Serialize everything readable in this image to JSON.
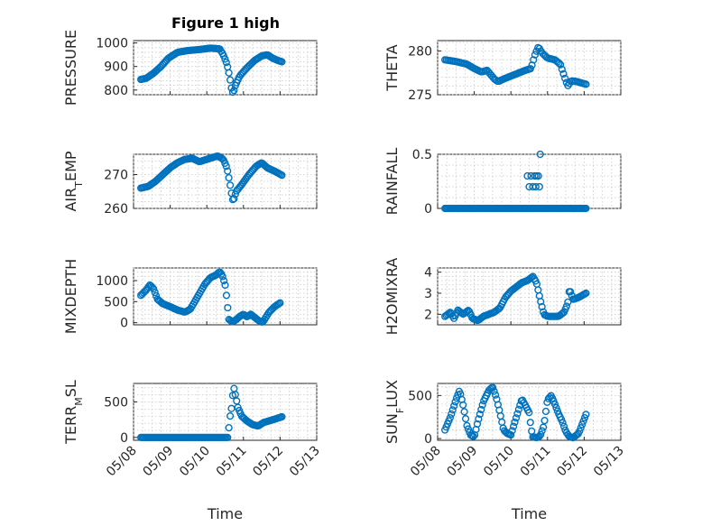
{
  "figure": {
    "title": "Figure 1 high",
    "marker_color": "#0072BD"
  },
  "chart_data": [
    {
      "type": "scatter",
      "name": "pressure",
      "ylabel_parts": [
        "PRESSURE"
      ],
      "ylim": [
        780,
        1010
      ],
      "yticks": [
        800,
        900,
        1000
      ],
      "ytick_labels": [
        "800",
        "900",
        "1000"
      ],
      "xlim": [
        "05/08",
        "05/13"
      ],
      "xticks": [
        "05/08",
        "05/09",
        "05/10",
        "05/11",
        "05/12",
        "05/13"
      ],
      "grid": true,
      "keys": [
        [
          0.2,
          845
        ],
        [
          0.35,
          850
        ],
        [
          0.55,
          872
        ],
        [
          0.75,
          900
        ],
        [
          0.95,
          935
        ],
        [
          1.2,
          960
        ],
        [
          1.5,
          968
        ],
        [
          1.8,
          972
        ],
        [
          2.1,
          978
        ],
        [
          2.35,
          975
        ],
        [
          2.45,
          950
        ],
        [
          2.55,
          910
        ],
        [
          2.62,
          860
        ],
        [
          2.67,
          810
        ],
        [
          2.72,
          785
        ],
        [
          2.78,
          820
        ],
        [
          2.9,
          860
        ],
        [
          3.1,
          895
        ],
        [
          3.3,
          925
        ],
        [
          3.5,
          945
        ],
        [
          3.65,
          950
        ],
        [
          3.8,
          935
        ],
        [
          3.95,
          925
        ],
        [
          4.05,
          920
        ]
      ],
      "n_points": 110
    },
    {
      "type": "scatter",
      "name": "theta",
      "ylabel_parts": [
        "THETA"
      ],
      "ylim": [
        275,
        281.2
      ],
      "yticks": [
        275,
        280
      ],
      "ytick_labels": [
        "275",
        "280"
      ],
      "xlim": [
        "05/08",
        "05/13"
      ],
      "xticks": [
        "05/08",
        "05/09",
        "05/10",
        "05/11",
        "05/12",
        "05/13"
      ],
      "grid": true,
      "keys": [
        [
          0.2,
          279.0
        ],
        [
          0.5,
          278.8
        ],
        [
          0.8,
          278.5
        ],
        [
          1.0,
          278.0
        ],
        [
          1.2,
          277.6
        ],
        [
          1.35,
          277.8
        ],
        [
          1.55,
          276.8
        ],
        [
          1.65,
          276.5
        ],
        [
          1.8,
          276.8
        ],
        [
          2.1,
          277.3
        ],
        [
          2.4,
          277.8
        ],
        [
          2.55,
          278.0
        ],
        [
          2.65,
          279.5
        ],
        [
          2.75,
          280.5
        ],
        [
          2.85,
          279.8
        ],
        [
          3.0,
          279.2
        ],
        [
          3.2,
          279.0
        ],
        [
          3.35,
          278.5
        ],
        [
          3.45,
          277.2
        ],
        [
          3.55,
          276.0
        ],
        [
          3.65,
          276.6
        ],
        [
          3.8,
          276.5
        ],
        [
          4.05,
          276.2
        ]
      ],
      "n_points": 95
    },
    {
      "type": "scatter",
      "name": "air_temp",
      "ylabel_parts": [
        "AIR",
        "T",
        "EMP"
      ],
      "ylim": [
        260,
        276
      ],
      "yticks": [
        260,
        270
      ],
      "ytick_labels": [
        "260",
        "270"
      ],
      "xlim": [
        "05/08",
        "05/13"
      ],
      "xticks": [
        "05/08",
        "05/09",
        "05/10",
        "05/11",
        "05/12",
        "05/13"
      ],
      "grid": true,
      "keys": [
        [
          0.2,
          266
        ],
        [
          0.4,
          266.5
        ],
        [
          0.6,
          268
        ],
        [
          0.8,
          270
        ],
        [
          1.0,
          272
        ],
        [
          1.2,
          273.5
        ],
        [
          1.4,
          274.5
        ],
        [
          1.6,
          274.8
        ],
        [
          1.8,
          273.8
        ],
        [
          2.0,
          274.5
        ],
        [
          2.3,
          275.5
        ],
        [
          2.45,
          274.5
        ],
        [
          2.55,
          272
        ],
        [
          2.62,
          268
        ],
        [
          2.68,
          264
        ],
        [
          2.72,
          262
        ],
        [
          2.8,
          265
        ],
        [
          2.95,
          267
        ],
        [
          3.15,
          270
        ],
        [
          3.35,
          272.5
        ],
        [
          3.5,
          273.5
        ],
        [
          3.65,
          272
        ],
        [
          3.85,
          271
        ],
        [
          4.05,
          269.8
        ]
      ],
      "n_points": 110
    },
    {
      "type": "scatter",
      "name": "rainfall",
      "ylabel_parts": [
        "RAINFALL"
      ],
      "ylim": [
        0,
        0.5
      ],
      "yticks": [
        0,
        0.5
      ],
      "ytick_labels": [
        "0",
        "0.5"
      ],
      "xlim": [
        "05/08",
        "05/13"
      ],
      "xticks": [
        "05/08",
        "05/09",
        "05/10",
        "05/11",
        "05/12",
        "05/13"
      ],
      "grid": true,
      "keys": [
        [
          0.2,
          0
        ],
        [
          4.05,
          0
        ]
      ],
      "n_points": 110,
      "extra_points": [
        [
          2.45,
          0.3
        ],
        [
          2.5,
          0.2
        ],
        [
          2.55,
          0.3
        ],
        [
          2.6,
          0.2
        ],
        [
          2.65,
          0.3
        ],
        [
          2.7,
          0.3
        ],
        [
          2.75,
          0.3
        ],
        [
          2.8,
          0.5
        ],
        [
          2.68,
          0.2
        ],
        [
          2.78,
          0.2
        ],
        [
          2.6,
          0
        ]
      ]
    },
    {
      "type": "scatter",
      "name": "mixdepth",
      "ylabel_parts": [
        "MIXDEPTH"
      ],
      "ylim": [
        -50,
        1300
      ],
      "yticks": [
        0,
        500,
        1000
      ],
      "ytick_labels": [
        "0",
        "500",
        "1000"
      ],
      "xlim": [
        "05/08",
        "05/13"
      ],
      "xticks": [
        "05/08",
        "05/09",
        "05/10",
        "05/11",
        "05/12",
        "05/13"
      ],
      "grid": true,
      "keys": [
        [
          0.2,
          650
        ],
        [
          0.35,
          780
        ],
        [
          0.45,
          900
        ],
        [
          0.55,
          800
        ],
        [
          0.65,
          560
        ],
        [
          0.8,
          450
        ],
        [
          1.0,
          380
        ],
        [
          1.2,
          300
        ],
        [
          1.4,
          250
        ],
        [
          1.55,
          320
        ],
        [
          1.75,
          620
        ],
        [
          1.95,
          920
        ],
        [
          2.1,
          1070
        ],
        [
          2.25,
          1130
        ],
        [
          2.35,
          1210
        ],
        [
          2.42,
          1130
        ],
        [
          2.5,
          900
        ],
        [
          2.55,
          550
        ],
        [
          2.6,
          80
        ],
        [
          2.7,
          20
        ],
        [
          2.8,
          70
        ],
        [
          2.9,
          150
        ],
        [
          3.0,
          200
        ],
        [
          3.1,
          140
        ],
        [
          3.2,
          200
        ],
        [
          3.3,
          130
        ],
        [
          3.4,
          60
        ],
        [
          3.5,
          10
        ],
        [
          3.55,
          40
        ],
        [
          3.7,
          250
        ],
        [
          3.85,
          380
        ],
        [
          4.0,
          470
        ]
      ],
      "n_points": 110
    },
    {
      "type": "scatter",
      "name": "h2omixra",
      "ylabel_parts": [
        "H2OMIXRA"
      ],
      "ylim": [
        1.5,
        4.2
      ],
      "yticks": [
        2,
        3,
        4
      ],
      "ytick_labels": [
        "2",
        "3",
        "4"
      ],
      "xlim": [
        "05/08",
        "05/13"
      ],
      "xticks": [
        "05/08",
        "05/09",
        "05/10",
        "05/11",
        "05/12",
        "05/13"
      ],
      "grid": true,
      "keys": [
        [
          0.2,
          1.9
        ],
        [
          0.35,
          2.1
        ],
        [
          0.45,
          1.8
        ],
        [
          0.55,
          2.2
        ],
        [
          0.7,
          2.0
        ],
        [
          0.85,
          2.2
        ],
        [
          0.95,
          1.8
        ],
        [
          1.1,
          1.7
        ],
        [
          1.25,
          1.9
        ],
        [
          1.4,
          2.0
        ],
        [
          1.55,
          2.1
        ],
        [
          1.7,
          2.3
        ],
        [
          1.85,
          2.8
        ],
        [
          2.0,
          3.1
        ],
        [
          2.15,
          3.3
        ],
        [
          2.3,
          3.5
        ],
        [
          2.45,
          3.6
        ],
        [
          2.6,
          3.8
        ],
        [
          2.7,
          3.5
        ],
        [
          2.8,
          2.7
        ],
        [
          2.9,
          2.0
        ],
        [
          3.0,
          1.9
        ],
        [
          3.15,
          1.9
        ],
        [
          3.3,
          1.9
        ],
        [
          3.45,
          2.1
        ],
        [
          3.55,
          2.5
        ],
        [
          3.6,
          3.2
        ],
        [
          3.7,
          2.7
        ],
        [
          3.85,
          2.8
        ],
        [
          4.05,
          3.0
        ]
      ],
      "n_points": 110
    },
    {
      "type": "scatter",
      "name": "terr_msl",
      "ylabel_parts": [
        "TERR",
        "M",
        "SL"
      ],
      "ylim": [
        -40,
        760
      ],
      "yticks": [
        0,
        500
      ],
      "ytick_labels": [
        "0",
        "500"
      ],
      "xlim": [
        "05/08",
        "05/13"
      ],
      "xticks": [
        "05/08",
        "05/09",
        "05/10",
        "05/11",
        "05/12",
        "05/13"
      ],
      "xlabel": "Time",
      "grid": true,
      "keys": [
        [
          0.2,
          0
        ],
        [
          2.52,
          0
        ],
        [
          2.58,
          0
        ],
        [
          2.62,
          250
        ],
        [
          2.68,
          430
        ],
        [
          2.73,
          720
        ],
        [
          2.78,
          600
        ],
        [
          2.85,
          420
        ],
        [
          2.95,
          300
        ],
        [
          3.1,
          230
        ],
        [
          3.25,
          180
        ],
        [
          3.4,
          160
        ],
        [
          3.55,
          210
        ],
        [
          3.75,
          240
        ],
        [
          4.05,
          290
        ]
      ],
      "n_points": 110
    },
    {
      "type": "scatter",
      "name": "sunflux",
      "ylabel_parts": [
        "SUN",
        "F",
        "LUX"
      ],
      "ylim": [
        -20,
        640
      ],
      "yticks": [
        0,
        500
      ],
      "ytick_labels": [
        "0",
        "500"
      ],
      "xlim": [
        "05/08",
        "05/13"
      ],
      "xticks": [
        "05/08",
        "05/09",
        "05/10",
        "05/11",
        "05/12",
        "05/13"
      ],
      "xlabel": "Time",
      "grid": true,
      "keys": [
        [
          0.2,
          100
        ],
        [
          0.35,
          250
        ],
        [
          0.5,
          450
        ],
        [
          0.6,
          560
        ],
        [
          0.7,
          380
        ],
        [
          0.8,
          150
        ],
        [
          0.9,
          40
        ],
        [
          1.0,
          20
        ],
        [
          1.1,
          200
        ],
        [
          1.25,
          430
        ],
        [
          1.4,
          560
        ],
        [
          1.5,
          600
        ],
        [
          1.6,
          480
        ],
        [
          1.7,
          300
        ],
        [
          1.8,
          100
        ],
        [
          1.9,
          60
        ],
        [
          2.0,
          40
        ],
        [
          2.1,
          180
        ],
        [
          2.2,
          320
        ],
        [
          2.3,
          460
        ],
        [
          2.4,
          380
        ],
        [
          2.5,
          300
        ],
        [
          2.55,
          120
        ],
        [
          2.6,
          20
        ],
        [
          2.7,
          10
        ],
        [
          2.8,
          30
        ],
        [
          2.9,
          150
        ],
        [
          3.0,
          450
        ],
        [
          3.1,
          500
        ],
        [
          3.2,
          400
        ],
        [
          3.3,
          290
        ],
        [
          3.4,
          200
        ],
        [
          3.5,
          80
        ],
        [
          3.6,
          20
        ],
        [
          3.7,
          10
        ],
        [
          3.85,
          60
        ],
        [
          4.05,
          280
        ]
      ],
      "n_points": 110
    }
  ]
}
